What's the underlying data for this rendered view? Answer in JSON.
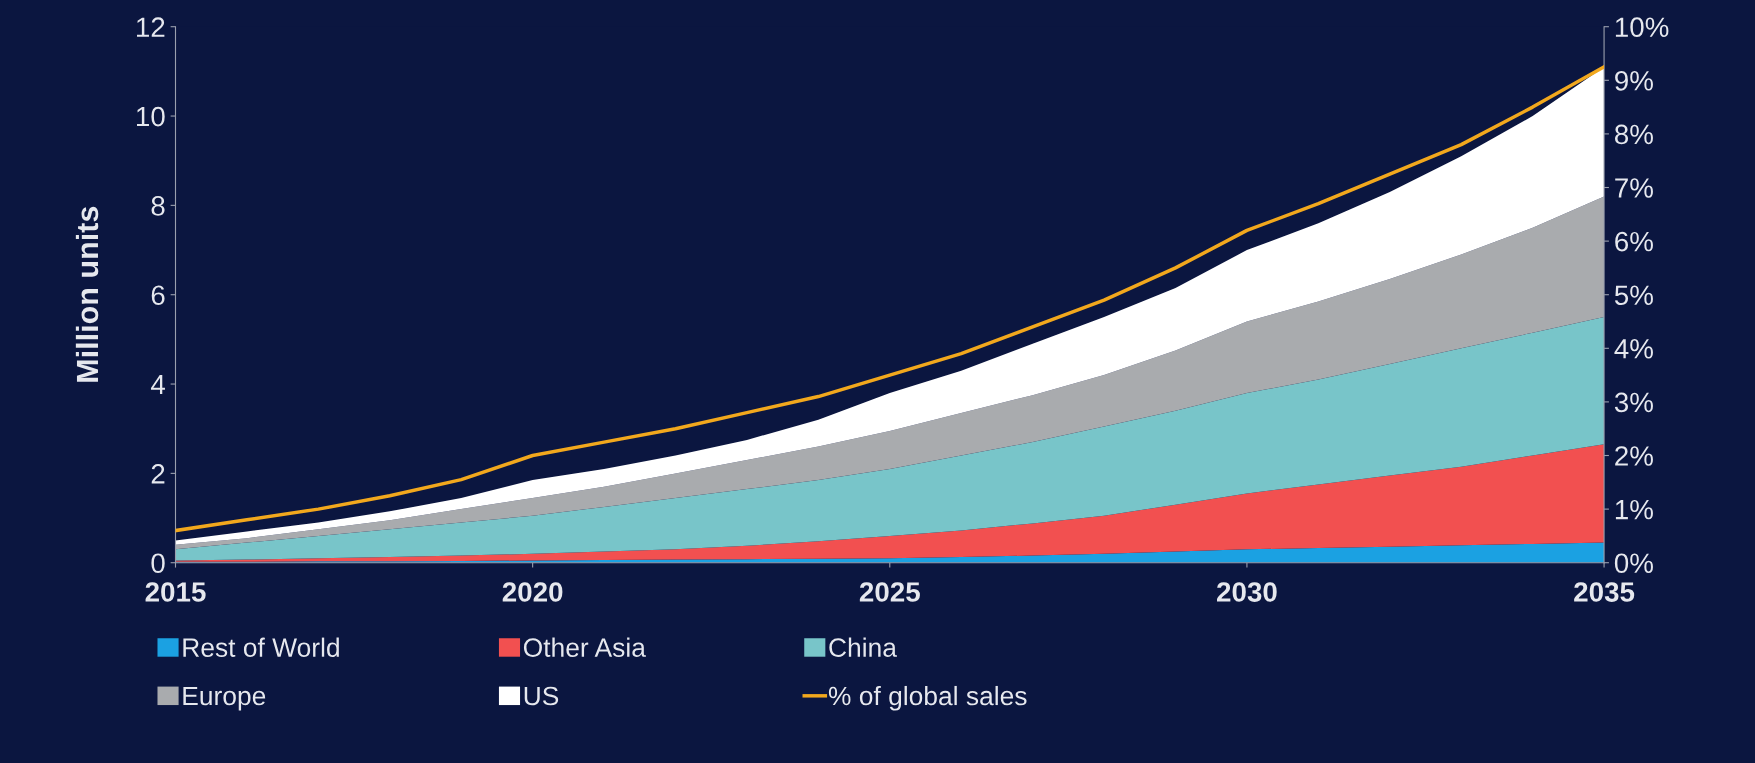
{
  "chart_data": {
    "type": "area",
    "stacked": true,
    "ylabel": "Million units",
    "x": [
      2015,
      2016,
      2017,
      2018,
      2019,
      2020,
      2021,
      2022,
      2023,
      2024,
      2025,
      2026,
      2027,
      2028,
      2029,
      2030,
      2031,
      2032,
      2033,
      2034,
      2035
    ],
    "xlim": [
      2015,
      2035
    ],
    "xticks": [
      2015,
      2020,
      2025,
      2030,
      2035
    ],
    "ylim": [
      0,
      12
    ],
    "yticks": [
      0,
      2,
      4,
      6,
      8,
      10,
      12
    ],
    "y2lim": [
      0,
      10
    ],
    "y2ticks": [
      {
        "value": 0,
        "label": "0%"
      },
      {
        "value": 1,
        "label": "1%"
      },
      {
        "value": 2,
        "label": "2%"
      },
      {
        "value": 3,
        "label": "3%"
      },
      {
        "value": 4,
        "label": "4%"
      },
      {
        "value": 5,
        "label": "5%"
      },
      {
        "value": 6,
        "label": "6%"
      },
      {
        "value": 7,
        "label": "7%"
      },
      {
        "value": 8,
        "label": "8%"
      },
      {
        "value": 9,
        "label": "9%"
      },
      {
        "value": 10,
        "label": "10%"
      }
    ],
    "grid": false,
    "legend": "bottom",
    "series": [
      {
        "name": "Rest of World",
        "color": "#1ba1e2",
        "values": [
          0.02,
          0.02,
          0.03,
          0.03,
          0.04,
          0.05,
          0.06,
          0.07,
          0.08,
          0.09,
          0.1,
          0.13,
          0.16,
          0.2,
          0.25,
          0.3,
          0.33,
          0.36,
          0.39,
          0.42,
          0.45
        ]
      },
      {
        "name": "Other Asia",
        "color": "#f25050",
        "values": [
          0.03,
          0.05,
          0.07,
          0.1,
          0.12,
          0.15,
          0.19,
          0.23,
          0.3,
          0.39,
          0.5,
          0.59,
          0.72,
          0.85,
          1.05,
          1.25,
          1.42,
          1.59,
          1.76,
          1.98,
          2.2
        ]
      },
      {
        "name": "China",
        "color": "#78c5c9",
        "values": [
          0.25,
          0.38,
          0.5,
          0.62,
          0.74,
          0.85,
          1.0,
          1.15,
          1.27,
          1.37,
          1.5,
          1.68,
          1.82,
          2.0,
          2.1,
          2.25,
          2.35,
          2.5,
          2.65,
          2.75,
          2.85
        ]
      },
      {
        "name": "Europe",
        "color": "#a9abae",
        "values": [
          0.1,
          0.1,
          0.15,
          0.2,
          0.3,
          0.4,
          0.45,
          0.55,
          0.65,
          0.75,
          0.85,
          0.95,
          1.05,
          1.15,
          1.35,
          1.6,
          1.75,
          1.9,
          2.1,
          2.35,
          2.7
        ]
      },
      {
        "name": "US",
        "color": "#ffffff",
        "values": [
          0.1,
          0.15,
          0.15,
          0.2,
          0.25,
          0.4,
          0.4,
          0.4,
          0.45,
          0.6,
          0.85,
          0.95,
          1.15,
          1.3,
          1.4,
          1.6,
          1.75,
          1.95,
          2.2,
          2.5,
          2.9
        ]
      },
      {
        "name": "% of global sales",
        "type": "line",
        "axis": "y2",
        "color": "#f2a81d",
        "values": [
          0.6,
          0.8,
          1.0,
          1.25,
          1.55,
          2.0,
          2.25,
          2.5,
          2.8,
          3.1,
          3.5,
          3.9,
          4.4,
          4.9,
          5.5,
          6.2,
          6.7,
          7.25,
          7.8,
          8.5,
          9.25
        ]
      }
    ]
  }
}
